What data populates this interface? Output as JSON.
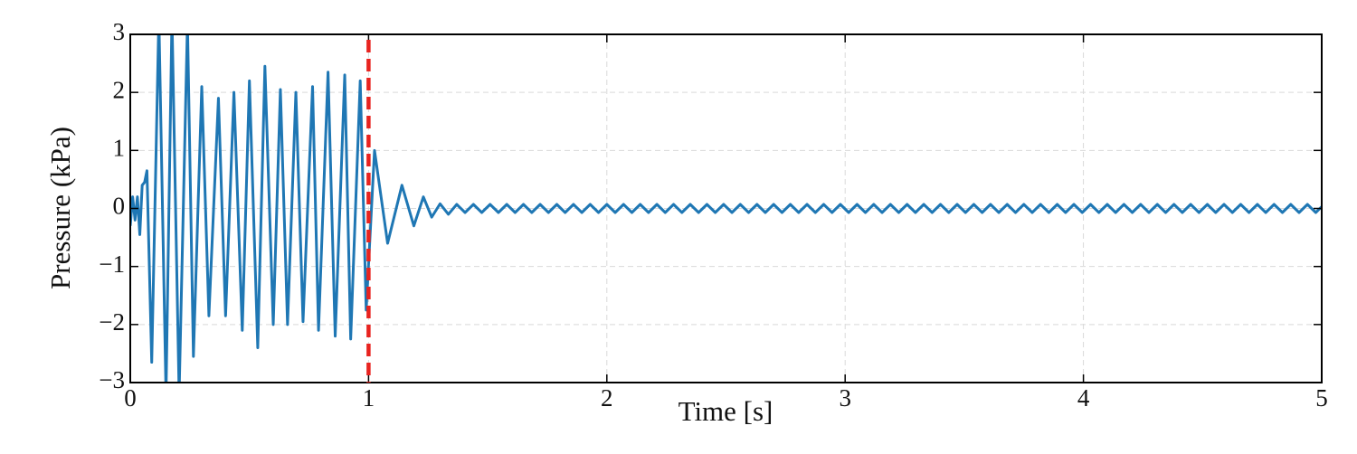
{
  "chart_data": {
    "type": "line",
    "xlabel": "Time [s]",
    "ylabel": "Pressure (kPa)",
    "color": "#1f77b4",
    "x": [
      0,
      0.01,
      0.02,
      0.03,
      0.04,
      0.05,
      0.06,
      0.07,
      0.09,
      0.12,
      0.15,
      0.175,
      0.205,
      0.24,
      0.265,
      0.3,
      0.33,
      0.37,
      0.4,
      0.435,
      0.47,
      0.5,
      0.535,
      0.565,
      0.6,
      0.63,
      0.66,
      0.695,
      0.725,
      0.765,
      0.79,
      0.83,
      0.86,
      0.9,
      0.925,
      0.965,
      0.99,
      1.025,
      1.08,
      1.14,
      1.19,
      1.23,
      1.265,
      1.3,
      1.335,
      1.37,
      1.405,
      1.44,
      1.475,
      1.51,
      1.545,
      1.58,
      1.615,
      1.65,
      1.685,
      1.72,
      1.755,
      1.79,
      1.825,
      1.86,
      1.895,
      1.93,
      1.965,
      2,
      2.035,
      2.07,
      2.105,
      2.14,
      2.175,
      2.21,
      2.245,
      2.28,
      2.315,
      2.35,
      2.385,
      2.42,
      2.455,
      2.49,
      2.525,
      2.56,
      2.595,
      2.63,
      2.665,
      2.7,
      2.735,
      2.77,
      2.805,
      2.84,
      2.875,
      2.91,
      2.945,
      2.98,
      3.015,
      3.05,
      3.085,
      3.12,
      3.155,
      3.19,
      3.225,
      3.26,
      3.295,
      3.33,
      3.365,
      3.4,
      3.435,
      3.47,
      3.505,
      3.54,
      3.575,
      3.61,
      3.645,
      3.68,
      3.715,
      3.75,
      3.785,
      3.82,
      3.855,
      3.89,
      3.925,
      3.96,
      3.995,
      4.03,
      4.065,
      4.1,
      4.135,
      4.17,
      4.205,
      4.24,
      4.275,
      4.31,
      4.345,
      4.38,
      4.415,
      4.45,
      4.485,
      4.52,
      4.555,
      4.59,
      4.625,
      4.66,
      4.695,
      4.73,
      4.765,
      4.8,
      4.835,
      4.87,
      4.905,
      4.94,
      4.975,
      5
    ],
    "values": [
      -0.3,
      0.2,
      -0.2,
      0.2,
      -0.45,
      0.4,
      0.45,
      0.65,
      -2.65,
      3.3,
      -3.2,
      3.3,
      -3.2,
      3.2,
      -2.55,
      2.1,
      -1.85,
      1.9,
      -1.85,
      2.0,
      -2.1,
      2.2,
      -2.4,
      2.45,
      -2.0,
      2.05,
      -2.0,
      2.0,
      -1.95,
      2.1,
      -2.1,
      2.35,
      -2.2,
      2.3,
      -2.25,
      2.2,
      -1.75,
      1.0,
      -0.6,
      0.4,
      -0.3,
      0.2,
      -0.15,
      0.08,
      -0.1,
      0.07,
      -0.07,
      0.07,
      -0.07,
      0.07,
      -0.07,
      0.07,
      -0.07,
      0.07,
      -0.07,
      0.07,
      -0.07,
      0.07,
      -0.07,
      0.07,
      -0.07,
      0.07,
      -0.07,
      0.07,
      -0.07,
      0.07,
      -0.07,
      0.07,
      -0.07,
      0.07,
      -0.07,
      0.07,
      -0.07,
      0.07,
      -0.07,
      0.07,
      -0.07,
      0.07,
      -0.07,
      0.07,
      -0.07,
      0.07,
      -0.07,
      0.07,
      -0.07,
      0.07,
      -0.07,
      0.07,
      -0.07,
      0.07,
      -0.07,
      0.07,
      -0.07,
      0.07,
      -0.07,
      0.07,
      -0.07,
      0.07,
      -0.07,
      0.07,
      -0.07,
      0.07,
      -0.07,
      0.07,
      -0.07,
      0.07,
      -0.07,
      0.07,
      -0.07,
      0.07,
      -0.07,
      0.07,
      -0.07,
      0.07,
      -0.07,
      0.07,
      -0.07,
      0.07,
      -0.07,
      0.07,
      -0.07,
      0.07,
      -0.07,
      0.07,
      -0.07,
      0.07,
      -0.07,
      0.07,
      -0.07,
      0.07,
      -0.07,
      0.07,
      -0.07,
      0.07,
      -0.07,
      0.07,
      -0.07,
      0.07,
      -0.07,
      0.07,
      -0.07,
      0.07,
      -0.07,
      0.07,
      -0.07,
      0.07,
      -0.07,
      0.07,
      -0.07,
      0.03
    ],
    "xlim": [
      0,
      5
    ],
    "xticks": [
      0,
      1,
      2,
      3,
      4,
      5
    ],
    "ylim": [
      -3,
      3
    ],
    "yticks": [
      {
        "value": -3,
        "label": "−3"
      },
      {
        "value": -2,
        "label": "−2"
      },
      {
        "value": -1,
        "label": "−1"
      },
      0,
      1,
      2,
      3
    ],
    "grid": true,
    "vline": {
      "x": 1,
      "color": "#e8231f"
    }
  }
}
